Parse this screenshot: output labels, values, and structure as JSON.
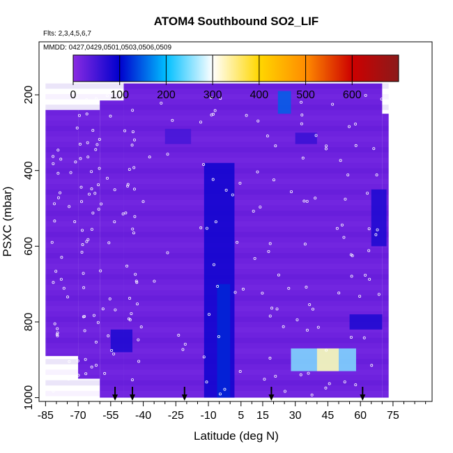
{
  "chart_data": {
    "type": "heatmap",
    "title": "ATOM4 Southbound SO2_LIF",
    "subtitle_flights": "Flts: 2,3,4,5,6,7",
    "subtitle_dates": "MMDD: 0427,0429,0501,0503,0506,0509",
    "xlabel": "Latitude (deg N)",
    "ylabel": "PSXC (mbar)",
    "xlim": [
      -88,
      93
    ],
    "ylim": [
      1010,
      60
    ],
    "x_ticks": [
      -85,
      -70,
      -55,
      -40,
      -25,
      -10,
      5,
      15,
      30,
      45,
      60,
      75
    ],
    "y_ticks": [
      200,
      400,
      600,
      800,
      1000
    ],
    "colorbar": {
      "range": [
        0,
        700
      ],
      "tick_values": [
        0,
        100,
        200,
        300,
        400,
        500,
        600
      ],
      "colors": [
        "#8a2be2",
        "#0000cd",
        "#00bfff",
        "#ffffff",
        "#ffd700",
        "#ff8c00",
        "#cd0000",
        "#8b1a1a"
      ]
    },
    "field_value": 20,
    "field_extent": {
      "lat_columns": [
        {
          "lat_min": -85,
          "lat_max": -70,
          "p_top": 240,
          "p_bottom": 890
        },
        {
          "lat_min": -70,
          "lat_max": -60,
          "p_top": 240,
          "p_bottom": 950
        },
        {
          "lat_min": -60,
          "lat_max": -49,
          "p_top": 215,
          "p_bottom": 1000
        },
        {
          "lat_min": -49,
          "lat_max": 70,
          "p_top": 170,
          "p_bottom": 1000
        },
        {
          "lat_min": 70,
          "lat_max": 73,
          "p_top": 250,
          "p_bottom": 1000
        }
      ]
    },
    "enhanced_regions": [
      {
        "lat_min": -12,
        "lat_max": 2,
        "p_min": 380,
        "p_max": 1000,
        "value": 90
      },
      {
        "lat_min": -6,
        "lat_max": 0,
        "p_min": 700,
        "p_max": 1000,
        "value": 120
      },
      {
        "lat_min": 22,
        "lat_max": 28,
        "p_min": 190,
        "p_max": 250,
        "value": 150
      },
      {
        "lat_min": 28,
        "lat_max": 58,
        "p_min": 870,
        "p_max": 930,
        "value": 250
      },
      {
        "lat_min": 40,
        "lat_max": 50,
        "p_min": 870,
        "p_max": 930,
        "value": 330
      },
      {
        "lat_min": 65,
        "lat_max": 72,
        "p_min": 450,
        "p_max": 600,
        "value": 80
      },
      {
        "lat_min": 55,
        "lat_max": 70,
        "p_min": 780,
        "p_max": 820,
        "value": 80
      },
      {
        "lat_min": -55,
        "lat_max": -45,
        "p_min": 820,
        "p_max": 880,
        "value": 80
      },
      {
        "lat_min": 30,
        "lat_max": 40,
        "p_min": 300,
        "p_max": 330,
        "value": 60
      },
      {
        "lat_min": -30,
        "lat_max": -18,
        "p_min": 290,
        "p_max": 330,
        "value": 50
      }
    ],
    "profile_markers_lat": [
      -53,
      -45,
      -21,
      19,
      61
    ]
  }
}
